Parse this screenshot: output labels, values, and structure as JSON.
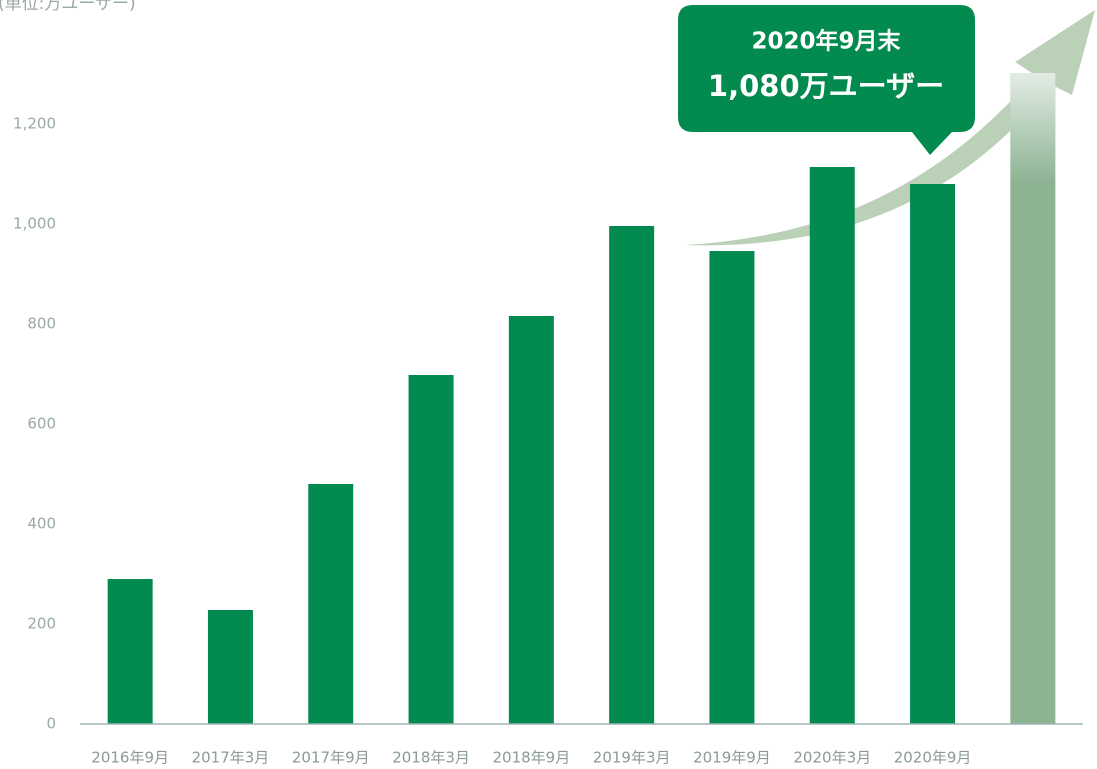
{
  "chart_data": {
    "type": "bar",
    "unit_label": "(単位:万ユーザー)",
    "categories": [
      "2016年9月",
      "2017年3月",
      "2017年9月",
      "2018年3月",
      "2018年9月",
      "2019年3月",
      "2019年9月",
      "2020年3月",
      "2020年9月",
      null
    ],
    "values": [
      290,
      228,
      480,
      698,
      816,
      996,
      946,
      1114,
      1080,
      1302
    ],
    "colors": [
      "#038a4f",
      "#038a4f",
      "#038a4f",
      "#038a4f",
      "#038a4f",
      "#038a4f",
      "#038a4f",
      "#038a4f",
      "#038a4f",
      "#8db393"
    ],
    "ylim": [
      0,
      1400
    ],
    "yticks": [
      0,
      200,
      400,
      600,
      800,
      {
        "value": 1000,
        "label": "1,000"
      },
      {
        "value": 1200,
        "label": "1,200"
      }
    ],
    "annotation": {
      "line1": "2020年9月末",
      "line2": "1,080万ユーザー"
    }
  }
}
